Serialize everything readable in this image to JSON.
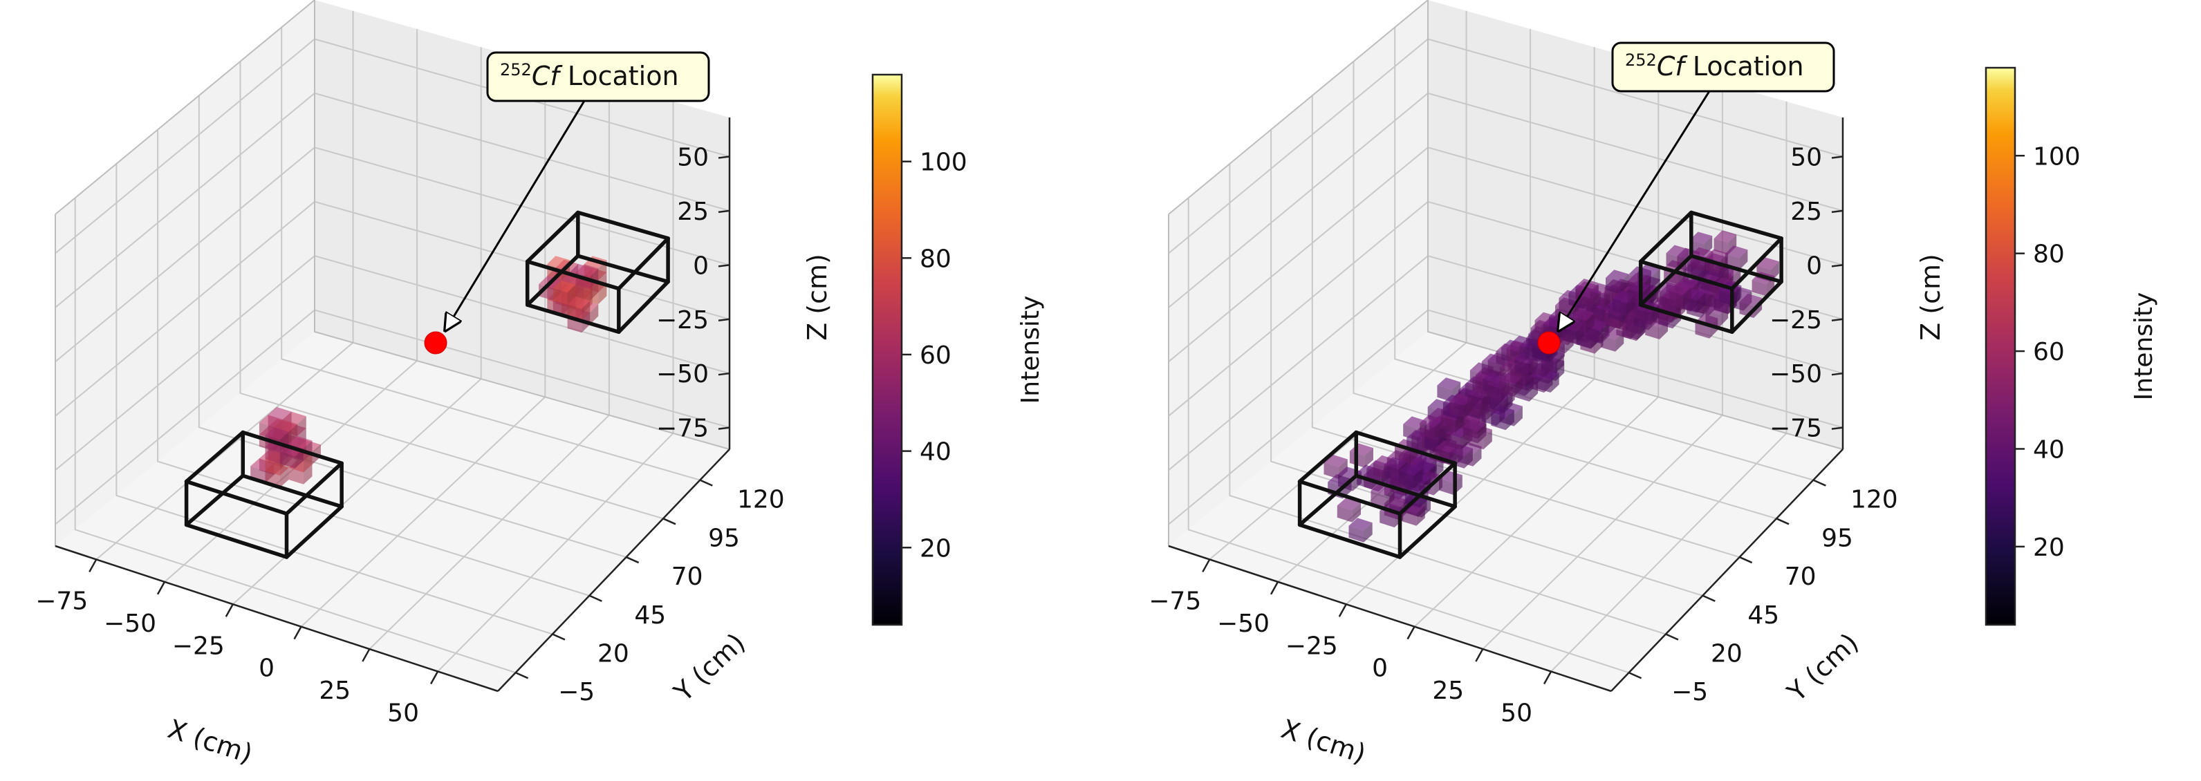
{
  "chart_data": [
    {
      "type": "3d-voxel",
      "panel": "left",
      "xlabel": "X (cm)",
      "ylabel": "Y (cm)",
      "zlabel": "Z (cm)",
      "x_ticks": [
        -75,
        -50,
        -25,
        0,
        25,
        50
      ],
      "y_ticks": [
        -5,
        20,
        45,
        70,
        95,
        120
      ],
      "z_ticks": [
        -75,
        -50,
        -25,
        0,
        25,
        50
      ],
      "annotation": {
        "sup": "252",
        "italic": "Cf",
        "text": " Location"
      },
      "source_marker": {
        "color": "#ff0000"
      },
      "colorbar": {
        "label": "Intensity",
        "ticks": [
          20,
          40,
          60,
          80,
          100
        ],
        "range": [
          4,
          118
        ],
        "colormap": "inferno"
      },
      "voxel_clusters": [
        {
          "region": "detector-near",
          "intensity": 65
        },
        {
          "region": "detector-far",
          "intensity": 70
        }
      ]
    },
    {
      "type": "3d-voxel",
      "panel": "right",
      "xlabel": "X (cm)",
      "ylabel": "Y (cm)",
      "zlabel": "Z (cm)",
      "x_ticks": [
        -75,
        -50,
        -25,
        0,
        25,
        50
      ],
      "y_ticks": [
        -5,
        20,
        45,
        70,
        95,
        120
      ],
      "z_ticks": [
        -75,
        -50,
        -25,
        0,
        25,
        50
      ],
      "annotation": {
        "sup": "252",
        "italic": "Cf",
        "text": " Location"
      },
      "source_marker": {
        "color": "#ff0000"
      },
      "colorbar": {
        "label": "Intensity",
        "ticks": [
          20,
          40,
          60,
          80,
          100
        ],
        "range": [
          4,
          118
        ],
        "colormap": "inferno"
      },
      "voxel_clusters": [
        {
          "region": "cone-near",
          "intensity": 40
        },
        {
          "region": "cone-far",
          "intensity": 42
        }
      ]
    }
  ]
}
